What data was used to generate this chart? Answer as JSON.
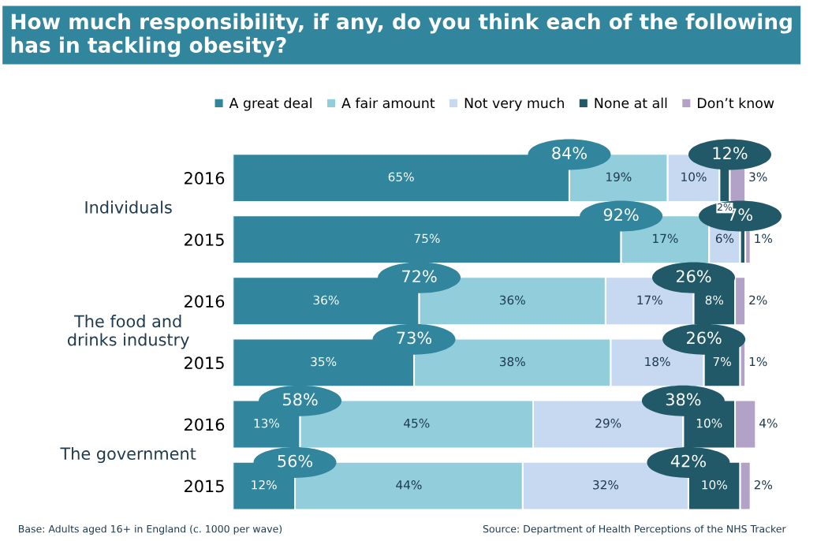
{
  "chart_data": {
    "type": "bar",
    "orientation": "horizontal",
    "stacked": true,
    "title": "How much responsibility, if any, do you think each of the following has in tackling obesity?",
    "categories": [
      "2016",
      "2015",
      "2016",
      "2015",
      "2016",
      "2015"
    ],
    "tick_labels": "y",
    "grid": false,
    "legend": "top",
    "series": [
      {
        "name": "A great deal",
        "color": "#31859c",
        "values": [
          65,
          75,
          36,
          35,
          13,
          12
        ],
        "value_labels": [
          "65%",
          "75%",
          "36%",
          "35%",
          "13%",
          "12%"
        ]
      },
      {
        "name": "A fair amount",
        "color": "#92cddc",
        "values": [
          19,
          17,
          36,
          38,
          45,
          44
        ],
        "value_labels": [
          "19%",
          "17%",
          "36%",
          "38%",
          "45%",
          "44%"
        ]
      },
      {
        "name": "Not very much",
        "color": "#c6d9f1",
        "values": [
          10,
          6,
          17,
          18,
          29,
          32
        ],
        "value_labels": [
          "10%",
          "6%",
          "17%",
          "18%",
          "29%",
          "32%"
        ]
      },
      {
        "name": "None at all",
        "color": "#215968",
        "values": [
          2,
          1,
          8,
          7,
          10,
          10
        ],
        "value_labels": [
          "2%",
          null,
          "8%",
          "7%",
          "10%",
          "10%"
        ]
      },
      {
        "name": "Don’t know",
        "color": "#b3a2c7",
        "values": [
          3,
          1,
          2,
          1,
          4,
          2
        ],
        "value_labels": [
          "3%",
          "1%",
          "2%",
          "1%",
          "4%",
          "2%"
        ]
      }
    ],
    "annotations": [
      "Individuals",
      "The food and\ndrinks industry",
      "The government",
      {
        "text": "84%",
        "x": 65
      },
      {
        "text": "12%",
        "x": 96
      },
      {
        "text": "92%",
        "x": 75
      },
      {
        "text": "7%",
        "x": 98
      },
      {
        "text": "72%",
        "x": 36
      },
      {
        "text": "26%",
        "x": 89
      },
      {
        "text": "73%",
        "x": 35
      },
      {
        "text": "26%",
        "x": 91
      },
      {
        "text": "58%",
        "x": 13
      },
      {
        "text": "38%",
        "x": 87
      },
      {
        "text": "56%",
        "x": 12
      },
      {
        "text": "42%",
        "x": 88
      },
      "Base: Adults aged 16+ in England (c. 1000 per wave)",
      "Source: Department of Health Perceptions of the NHS Tracker"
    ]
  }
}
